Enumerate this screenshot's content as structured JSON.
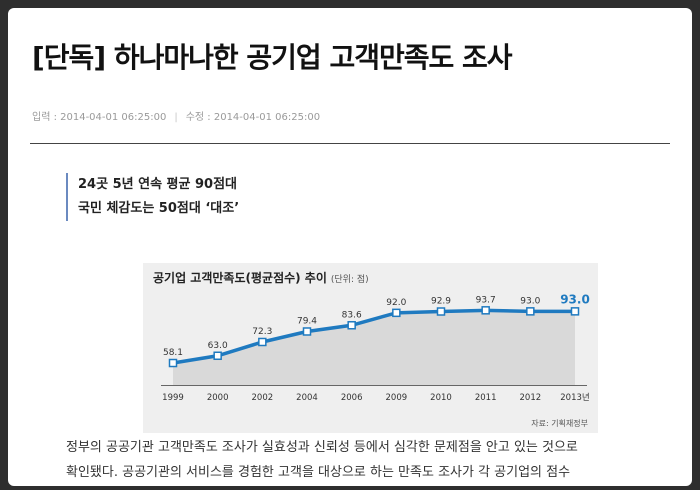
{
  "article": {
    "title": "[단독] 하나마나한 공기업 고객만족도 조사",
    "meta_input": "입력 : 2014-04-01 06:25:00",
    "meta_separator": "|",
    "meta_modified": "수정 : 2014-04-01 06:25:00",
    "subheads": [
      "24곳 5년 연속 평균 90점대",
      "국민 체감도는 50점대 ‘대조’"
    ],
    "body_lines": [
      "정부의 공공기관 고객만족도 조사가 실효성과 신뢰성 등에서 심각한 문제점을 안고 있는 것으로",
      "확인됐다. 공공기관의 서비스를 경험한 고객을 대상으로 하는 만족도 조사가 각 공기업의 점수"
    ]
  },
  "chart": {
    "title": "공기업 고객만족도(평균점수) 추이",
    "unit": "(단위: 점)",
    "source": "자료: 기획재정부",
    "line_color": "#1f7ac0",
    "highlight_color": "#1f7ac0"
  },
  "chart_data": {
    "type": "line",
    "title": "공기업 고객만족도(평균점수) 추이",
    "categories": [
      "1999",
      "2000",
      "2002",
      "2004",
      "2006",
      "2009",
      "2010",
      "2011",
      "2012",
      "2013년"
    ],
    "values": [
      58.1,
      63.0,
      72.3,
      79.4,
      83.6,
      92.0,
      92.9,
      93.7,
      93.0,
      93.0
    ],
    "value_labels": [
      "58.1",
      "63.0",
      "72.3",
      "79.4",
      "83.6",
      "92.0",
      "92.9",
      "93.7",
      "93.0",
      "93.0"
    ],
    "ylim": [
      50,
      100
    ],
    "grid": false,
    "legend": "none"
  }
}
